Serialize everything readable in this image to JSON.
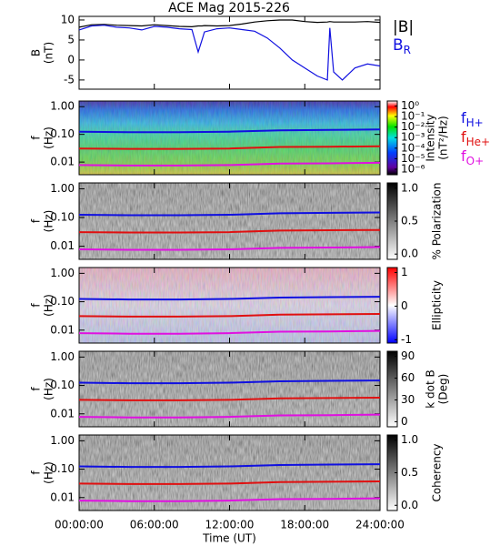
{
  "title": "ACE Mag 2015-226",
  "chart_data": [
    {
      "type": "line",
      "ylabel": [
        "B",
        "(nT)"
      ],
      "xlim": [
        0,
        24
      ],
      "ylim": [
        -7.3,
        10.9
      ],
      "yticks": [
        -5,
        0,
        5,
        10
      ],
      "x": [
        0,
        1,
        2,
        3,
        4,
        5,
        6,
        7,
        8,
        9,
        9.5,
        9.8,
        10,
        11,
        12,
        13,
        14,
        15,
        16,
        17,
        18,
        19,
        19.8,
        20,
        20.3,
        21,
        22,
        23,
        24
      ],
      "series": [
        {
          "name": "|B|",
          "color": "#000000",
          "values": [
            8.2,
            8.8,
            8.9,
            8.7,
            8.6,
            8.5,
            8.8,
            8.6,
            8.4,
            8.3,
            8.5,
            8.5,
            8.6,
            8.5,
            8.6,
            9.0,
            9.5,
            9.8,
            10.0,
            10.0,
            9.6,
            9.4,
            9.5,
            9.6,
            9.5,
            9.5,
            9.5,
            9.6,
            9.4
          ]
        },
        {
          "name": "BR",
          "color": "#1010e0",
          "values": [
            7.5,
            8.5,
            8.7,
            8.2,
            8.0,
            7.5,
            8.4,
            8.2,
            7.8,
            7.6,
            2,
            5,
            7,
            7.8,
            8.0,
            7.6,
            7.2,
            5.5,
            3,
            0,
            -2,
            -4,
            -5,
            8,
            -3,
            -5,
            -2,
            -1,
            -1.5
          ]
        }
      ]
    },
    {
      "type": "spectrogram",
      "colorscale": "rainbow",
      "ylabel": [
        "f",
        "(Hz)"
      ],
      "log": true,
      "xlim": [
        0,
        24
      ],
      "ylim": [
        0.0035,
        1.6
      ],
      "yticks": [
        {
          "value": 0.01,
          "label": "0.01"
        },
        {
          "value": 0.1,
          "label": "0.10"
        },
        {
          "value": 1,
          "label": "1.00"
        }
      ],
      "colorbar": {
        "label": [
          "Intensity",
          "(nT²/Hz)"
        ],
        "log": true,
        "lim": [
          3e-07,
          3
        ],
        "ticks": [
          {
            "value": 1,
            "label": "10⁰"
          },
          {
            "value": 0.1,
            "label": "10⁻¹"
          },
          {
            "value": 0.01,
            "label": "10⁻²"
          },
          {
            "value": 0.001,
            "label": "10⁻³"
          },
          {
            "value": 0.0001,
            "label": "10⁻⁴"
          },
          {
            "value": 1e-05,
            "label": "10⁻⁵"
          },
          {
            "value": 1e-06,
            "label": "10⁻⁶"
          }
        ]
      },
      "legend": true,
      "x": [
        0,
        4,
        8,
        12,
        16,
        20,
        24
      ],
      "series": [
        {
          "name": "fH+",
          "color": "#1010e0",
          "values": [
            0.125,
            0.12,
            0.12,
            0.125,
            0.14,
            0.145,
            0.15
          ]
        },
        {
          "name": "fHe+",
          "color": "#e01010",
          "values": [
            0.031,
            0.03,
            0.03,
            0.031,
            0.035,
            0.036,
            0.037
          ]
        },
        {
          "name": "fO+",
          "color": "#e010e0",
          "values": [
            0.0078,
            0.0075,
            0.0075,
            0.0078,
            0.0088,
            0.009,
            0.0094
          ]
        }
      ]
    },
    {
      "type": "spectrogram",
      "colorscale": "gray",
      "ylabel": [
        "f",
        "(Hz)"
      ],
      "log": true,
      "xlim": [
        0,
        24
      ],
      "ylim": [
        0.0035,
        1.6
      ],
      "yticks": [
        {
          "value": 0.01,
          "label": "0.01"
        },
        {
          "value": 0.1,
          "label": "0.10"
        },
        {
          "value": 1,
          "label": "1.00"
        }
      ],
      "colorbar": {
        "label": [
          "% Polarization"
        ],
        "lim": [
          -0.08,
          1.08
        ],
        "ticks": [
          {
            "value": 0,
            "label": "0.0"
          },
          {
            "value": 0.5,
            "label": "0.5"
          },
          {
            "value": 1,
            "label": "1.0"
          }
        ]
      },
      "x": [
        0,
        4,
        8,
        12,
        16,
        20,
        24
      ],
      "series": [
        {
          "name": "fH+",
          "color": "#1010e0",
          "values": [
            0.125,
            0.12,
            0.12,
            0.125,
            0.14,
            0.145,
            0.15
          ]
        },
        {
          "name": "fHe+",
          "color": "#e01010",
          "values": [
            0.031,
            0.03,
            0.03,
            0.031,
            0.035,
            0.036,
            0.037
          ]
        },
        {
          "name": "fO+",
          "color": "#e010e0",
          "values": [
            0.0078,
            0.0075,
            0.0075,
            0.0078,
            0.0088,
            0.009,
            0.0094
          ]
        }
      ]
    },
    {
      "type": "spectrogram",
      "colorscale": "bwr",
      "ylabel": [
        "f",
        "(Hz)"
      ],
      "log": true,
      "xlim": [
        0,
        24
      ],
      "ylim": [
        0.0035,
        1.6
      ],
      "yticks": [
        {
          "value": 0.01,
          "label": "0.01"
        },
        {
          "value": 0.1,
          "label": "0.10"
        },
        {
          "value": 1,
          "label": "1.00"
        }
      ],
      "colorbar": {
        "label": [
          "Ellipticity"
        ],
        "lim": [
          -1.1,
          1.15
        ],
        "ticks": [
          -1,
          0,
          1
        ]
      },
      "x": [
        0,
        4,
        8,
        12,
        16,
        20,
        24
      ],
      "series": [
        {
          "name": "fH+",
          "color": "#1010e0",
          "values": [
            0.125,
            0.12,
            0.12,
            0.125,
            0.14,
            0.145,
            0.15
          ]
        },
        {
          "name": "fHe+",
          "color": "#e01010",
          "values": [
            0.031,
            0.03,
            0.03,
            0.031,
            0.035,
            0.036,
            0.037
          ]
        },
        {
          "name": "fO+",
          "color": "#e010e0",
          "values": [
            0.0078,
            0.0075,
            0.0075,
            0.0078,
            0.0088,
            0.009,
            0.0094
          ]
        }
      ]
    },
    {
      "type": "spectrogram",
      "colorscale": "gray",
      "ylabel": [
        "f",
        "(Hz)"
      ],
      "log": true,
      "xlim": [
        0,
        24
      ],
      "ylim": [
        0.0035,
        1.6
      ],
      "yticks": [
        {
          "value": 0.01,
          "label": "0.01"
        },
        {
          "value": 0.1,
          "label": "0.10"
        },
        {
          "value": 1,
          "label": "1.00"
        }
      ],
      "colorbar": {
        "label": [
          "k dot B",
          "(Deg)"
        ],
        "lim": [
          -7,
          97
        ],
        "ticks": [
          0,
          30,
          60,
          90
        ]
      },
      "x": [
        0,
        4,
        8,
        12,
        16,
        20,
        24
      ],
      "series": [
        {
          "name": "fH+",
          "color": "#1010e0",
          "values": [
            0.125,
            0.12,
            0.12,
            0.125,
            0.14,
            0.145,
            0.15
          ]
        },
        {
          "name": "fHe+",
          "color": "#e01010",
          "values": [
            0.031,
            0.03,
            0.03,
            0.031,
            0.035,
            0.036,
            0.037
          ]
        },
        {
          "name": "fO+",
          "color": "#e010e0",
          "values": [
            0.0078,
            0.0075,
            0.0075,
            0.0078,
            0.0088,
            0.009,
            0.0094
          ]
        }
      ]
    },
    {
      "type": "spectrogram",
      "colorscale": "gray",
      "ylabel": [
        "f",
        "(Hz)"
      ],
      "log": true,
      "xlim": [
        0,
        24
      ],
      "ylim": [
        0.0035,
        1.6
      ],
      "yticks": [
        {
          "value": 0.01,
          "label": "0.01"
        },
        {
          "value": 0.1,
          "label": "0.10"
        },
        {
          "value": 1,
          "label": "1.00"
        }
      ],
      "colorbar": {
        "label": [
          "Coherency"
        ],
        "lim": [
          -0.08,
          1.08
        ],
        "ticks": [
          {
            "value": 0,
            "label": "0.0"
          },
          {
            "value": 0.5,
            "label": "0.5"
          },
          {
            "value": 1,
            "label": "1.0"
          }
        ]
      },
      "x": [
        0,
        4,
        8,
        12,
        16,
        20,
        24
      ],
      "xticks": [
        {
          "value": 0,
          "label": "00:00:00"
        },
        {
          "value": 6,
          "label": "06:00:00"
        },
        {
          "value": 12,
          "label": "12:00:00"
        },
        {
          "value": 18,
          "label": "18:00:00"
        },
        {
          "value": 24,
          "label": "24:00:00"
        }
      ],
      "xlabel": "Time (UT)",
      "series": [
        {
          "name": "fH+",
          "color": "#1010e0",
          "values": [
            0.125,
            0.12,
            0.12,
            0.125,
            0.14,
            0.145,
            0.15
          ]
        },
        {
          "name": "fHe+",
          "color": "#e01010",
          "values": [
            0.031,
            0.03,
            0.03,
            0.031,
            0.035,
            0.036,
            0.037
          ]
        },
        {
          "name": "fO+",
          "color": "#e010e0",
          "values": [
            0.0078,
            0.0075,
            0.0075,
            0.0078,
            0.0088,
            0.009,
            0.0094
          ]
        }
      ]
    }
  ]
}
